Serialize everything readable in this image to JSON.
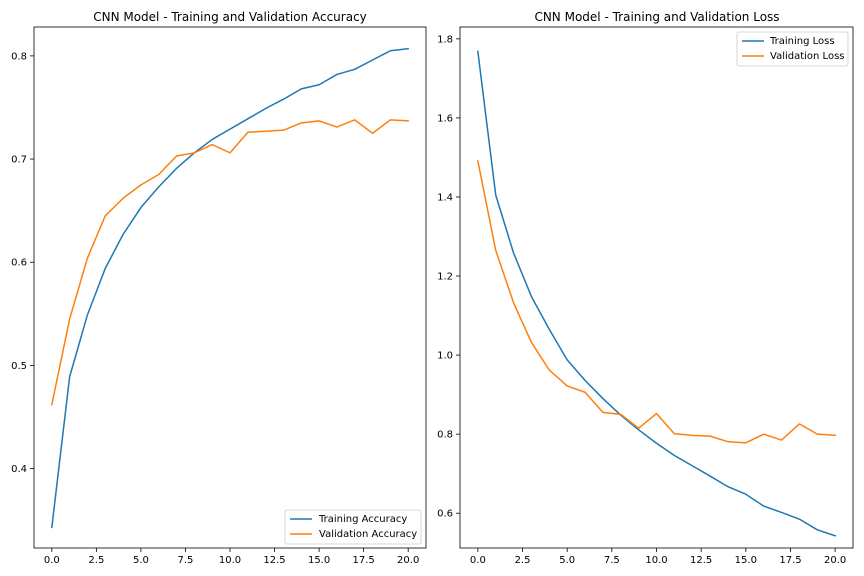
{
  "colors": {
    "training": "#1f77b4",
    "validation": "#ff7f0e",
    "axes": "#000000",
    "legend_border": "#cccccc",
    "background": "#ffffff"
  },
  "chart_data": [
    {
      "type": "line",
      "title": "CNN Model - Training and Validation Accuracy",
      "xlabel": "",
      "ylabel": "",
      "xlim": [
        -1,
        21
      ],
      "ylim": [
        0.323,
        0.828
      ],
      "xticks": [
        0.0,
        2.5,
        5.0,
        7.5,
        10.0,
        12.5,
        15.0,
        17.5,
        20.0
      ],
      "xtick_labels": [
        "0.0",
        "2.5",
        "5.0",
        "7.5",
        "10.0",
        "12.5",
        "15.0",
        "17.5",
        "20.0"
      ],
      "yticks": [
        0.4,
        0.5,
        0.6,
        0.7,
        0.8
      ],
      "ytick_labels": [
        "0.4",
        "0.5",
        "0.6",
        "0.7",
        "0.8"
      ],
      "grid": false,
      "legend": "lower-right",
      "x": [
        0,
        1,
        2,
        3,
        4,
        5,
        6,
        7,
        8,
        9,
        10,
        11,
        12,
        13,
        14,
        15,
        16,
        17,
        18,
        19,
        20
      ],
      "series": [
        {
          "name": "Training Accuracy",
          "color_key": "training",
          "values": [
            0.343,
            0.489,
            0.549,
            0.594,
            0.627,
            0.653,
            0.673,
            0.691,
            0.706,
            0.719,
            0.729,
            0.739,
            0.749,
            0.758,
            0.768,
            0.772,
            0.782,
            0.787,
            0.796,
            0.805,
            0.807
          ]
        },
        {
          "name": "Validation Accuracy",
          "color_key": "validation",
          "values": [
            0.462,
            0.545,
            0.604,
            0.645,
            0.662,
            0.675,
            0.685,
            0.703,
            0.706,
            0.714,
            0.706,
            0.726,
            0.727,
            0.728,
            0.735,
            0.737,
            0.731,
            0.738,
            0.725,
            0.738,
            0.737
          ]
        }
      ]
    },
    {
      "type": "line",
      "title": "CNN Model - Training and Validation Loss",
      "xlabel": "",
      "ylabel": "",
      "xlim": [
        -1,
        21
      ],
      "ylim": [
        0.512,
        1.83
      ],
      "xticks": [
        0.0,
        2.5,
        5.0,
        7.5,
        10.0,
        12.5,
        15.0,
        17.5,
        20.0
      ],
      "xtick_labels": [
        "0.0",
        "2.5",
        "5.0",
        "7.5",
        "10.0",
        "12.5",
        "15.0",
        "17.5",
        "20.0"
      ],
      "yticks": [
        0.6,
        0.8,
        1.0,
        1.2,
        1.4,
        1.6,
        1.8
      ],
      "ytick_labels": [
        "0.6",
        "0.8",
        "1.0",
        "1.2",
        "1.4",
        "1.6",
        "1.8"
      ],
      "grid": false,
      "legend": "upper-right",
      "x": [
        0,
        1,
        2,
        3,
        4,
        5,
        6,
        7,
        8,
        9,
        10,
        11,
        12,
        13,
        14,
        15,
        16,
        17,
        18,
        19,
        20
      ],
      "series": [
        {
          "name": "Training Loss",
          "color_key": "training",
          "values": [
            1.768,
            1.405,
            1.258,
            1.148,
            1.065,
            0.988,
            0.936,
            0.89,
            0.848,
            0.811,
            0.777,
            0.746,
            0.72,
            0.694,
            0.667,
            0.648,
            0.618,
            0.602,
            0.585,
            0.558,
            0.543
          ]
        },
        {
          "name": "Validation Loss",
          "color_key": "validation",
          "values": [
            1.491,
            1.265,
            1.132,
            1.032,
            0.962,
            0.922,
            0.906,
            0.855,
            0.85,
            0.815,
            0.852,
            0.801,
            0.797,
            0.795,
            0.781,
            0.778,
            0.8,
            0.785,
            0.826,
            0.8,
            0.797
          ]
        }
      ]
    }
  ]
}
